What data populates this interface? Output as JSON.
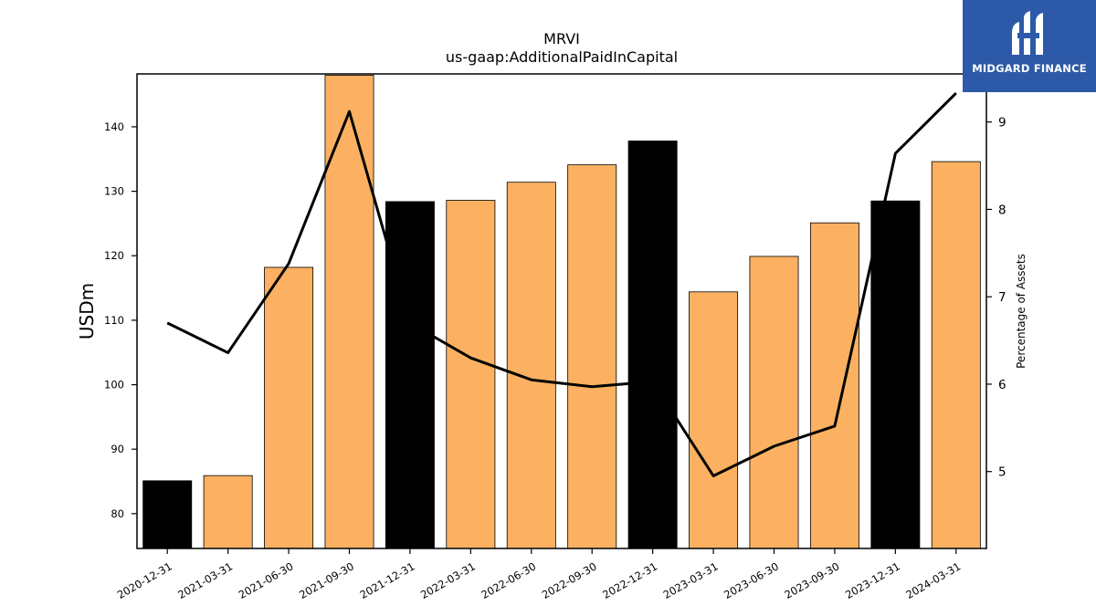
{
  "brand": {
    "name": "MIDGARD FINANCE",
    "background": "#2d5aa8"
  },
  "chart_data": {
    "type": "bar",
    "title": "MRVI",
    "subtitle": "us-gaap:AdditionalPaidInCapital",
    "ylabel": "USDm",
    "y2label": "Percentage of Assets",
    "categories": [
      "2020-12-31",
      "2021-03-31",
      "2021-06-30",
      "2021-09-30",
      "2021-12-31",
      "2022-03-31",
      "2022-06-30",
      "2022-09-30",
      "2022-12-31",
      "2023-03-31",
      "2023-06-30",
      "2023-09-30",
      "2023-12-31",
      "2024-03-31"
    ],
    "series": [
      {
        "type": "bar",
        "axis": "left",
        "values": [
          85.1,
          85.9,
          118.2,
          148.0,
          128.4,
          128.6,
          131.4,
          134.1,
          137.8,
          114.4,
          119.9,
          125.1,
          128.5,
          134.6
        ],
        "colors": [
          "#000000",
          "#fbb161",
          "#fbb161",
          "#fbb161",
          "#000000",
          "#fbb161",
          "#fbb161",
          "#fbb161",
          "#000000",
          "#fbb161",
          "#fbb161",
          "#fbb161",
          "#000000",
          "#fbb161"
        ]
      },
      {
        "type": "line",
        "axis": "right",
        "color": "#000000",
        "values": [
          6.7,
          6.36,
          7.38,
          9.12,
          6.7,
          6.3,
          6.05,
          5.97,
          6.03,
          4.95,
          5.29,
          5.52,
          8.64,
          9.33
        ]
      }
    ],
    "ylim": [
      74.6,
      148.2
    ],
    "y_ticks": [
      80,
      90,
      100,
      110,
      120,
      130,
      140
    ],
    "y2lim": [
      4.12,
      9.55
    ],
    "y2_ticks": [
      5,
      6,
      7,
      8,
      9
    ],
    "grid": false
  }
}
